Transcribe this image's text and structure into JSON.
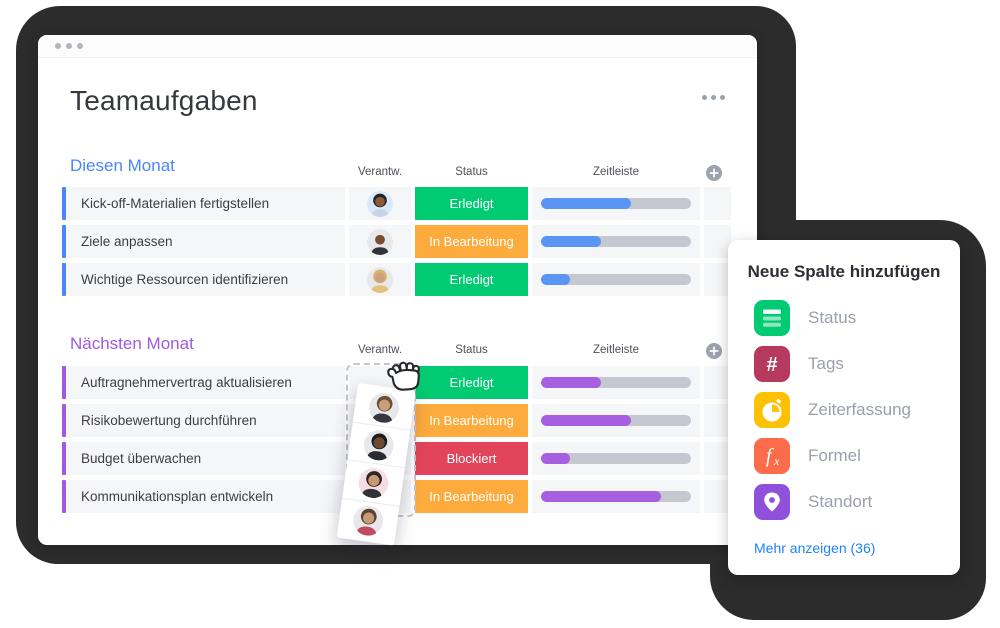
{
  "window": {
    "title": "Teamaufgaben"
  },
  "columns": {
    "owner": "Verantw.",
    "status": "Status",
    "timeline": "Zeitleiste"
  },
  "colors": {
    "done": "#00ca72",
    "working": "#fdab3d",
    "blocked": "#e2445c",
    "track": "#c5c8d0",
    "link": "#1f83f7"
  },
  "sections": [
    {
      "name": "Diesen Monat",
      "accent": "#4c85fb",
      "bar_color": "#5a95f5",
      "rows": [
        {
          "task": "Kick-off-Materialien fertigstellen",
          "status": {
            "label": "Erledigt",
            "color": "#00ca72"
          },
          "progress": 60,
          "avatar": "a"
        },
        {
          "task": "Ziele anpassen",
          "status": {
            "label": "In Bearbeitung",
            "color": "#fdab3d"
          },
          "progress": 40,
          "avatar": "b"
        },
        {
          "task": "Wichtige Ressourcen identifizieren",
          "status": {
            "label": "Erledigt",
            "color": "#00ca72"
          },
          "progress": 19,
          "avatar": "c"
        }
      ]
    },
    {
      "name": "Nächsten Monat",
      "accent": "#a159e0",
      "bar_color": "#a55fe0",
      "rows": [
        {
          "task": "Auftragnehmervertrag aktualisieren",
          "status": {
            "label": "Erledigt",
            "color": "#00ca72"
          },
          "progress": 40,
          "avatar": null
        },
        {
          "task": "Risikobewertung durchführen",
          "status": {
            "label": "In Bearbeitung",
            "color": "#fdab3d"
          },
          "progress": 60,
          "avatar": null
        },
        {
          "task": "Budget überwachen",
          "status": {
            "label": "Blockiert",
            "color": "#e2445c"
          },
          "progress": 19,
          "avatar": null
        },
        {
          "task": "Kommunikationsplan entwickeln",
          "status": {
            "label": "In Bearbeitung",
            "color": "#fdab3d"
          },
          "progress": 80,
          "avatar": null
        }
      ]
    }
  ],
  "drag_card": {
    "avatars": [
      "d",
      "e",
      "f",
      "g"
    ]
  },
  "avatars": {
    "a": {
      "bg": "#d9e8fb",
      "hair": "#262222",
      "skin": "#8a5a3c",
      "shirt": "#c9d4e8"
    },
    "b": {
      "bg": "#e6e8ec",
      "hair": "none",
      "skin": "#7b4b2f",
      "shirt": "#303338"
    },
    "c": {
      "bg": "#e6e8ec",
      "hair": "#d9b26a",
      "skin": "#cfa07e",
      "shirt": "#e3c178"
    },
    "d": {
      "bg": "#e6e8ec",
      "hair": "#6d4f38",
      "skin": "#c99e78",
      "shirt": "#34373d"
    },
    "e": {
      "bg": "#e6e8ec",
      "hair": "#1b1c1f",
      "skin": "#6f4a30",
      "shirt": "#292b30"
    },
    "f": {
      "bg": "#f7dde4",
      "hair": "#2b2523",
      "skin": "#c59a72",
      "shirt": "#303338"
    },
    "g": {
      "bg": "#e6e8ec",
      "hair": "#59432f",
      "skin": "#c69a74",
      "shirt": "#c24a60"
    }
  },
  "popup": {
    "title": "Neue Spalte hinzufügen",
    "items": [
      {
        "label": "Status",
        "color": "#00ca72",
        "icon": "status-column-icon"
      },
      {
        "label": "Tags",
        "color": "#b63a5e",
        "icon": "hashtag-icon"
      },
      {
        "label": "Zeiterfassung",
        "color": "#fdc104",
        "icon": "stopwatch-icon"
      },
      {
        "label": "Formel",
        "color": "#fb6d4a",
        "icon": "formula-icon"
      },
      {
        "label": "Standort",
        "color": "#8f50dc",
        "icon": "location-pin-icon"
      }
    ],
    "more_link": "Mehr anzeigen (36)",
    "link_color": "#1f83f7"
  }
}
